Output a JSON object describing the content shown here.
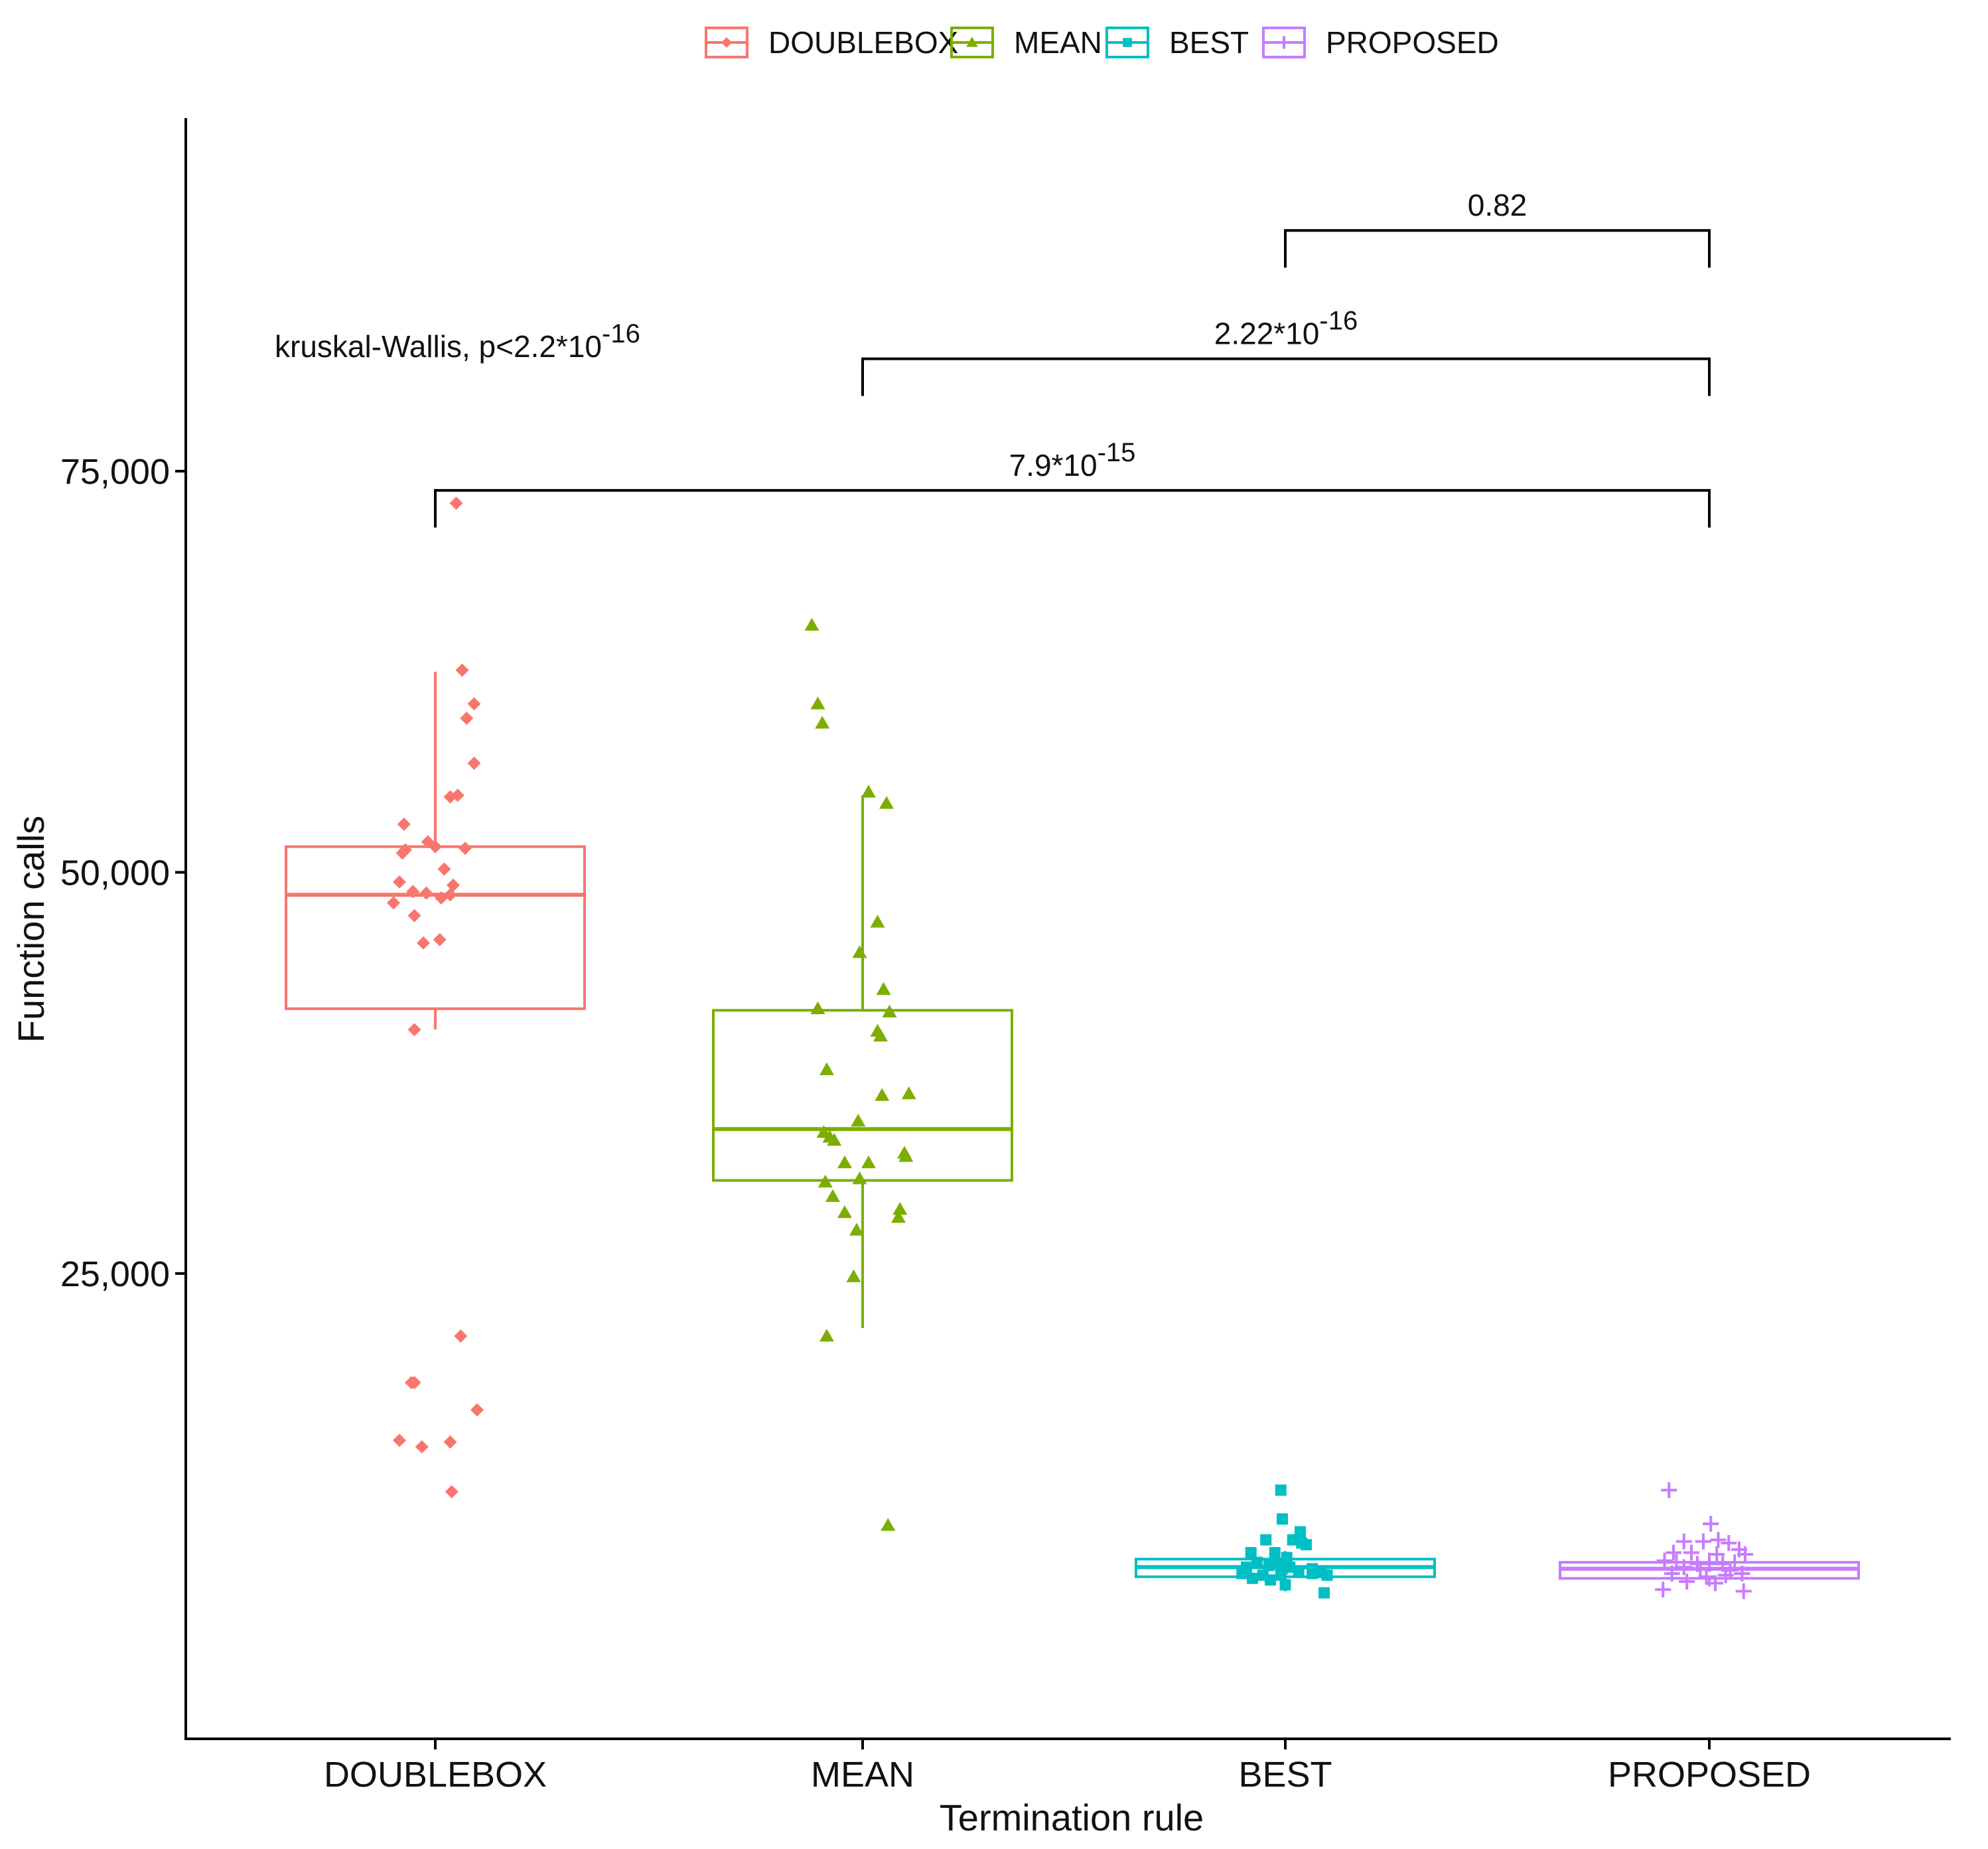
{
  "chart_data": {
    "type": "boxplot",
    "xlabel": "Termination rule",
    "ylabel": "Function calls",
    "ylim": [
      -4000,
      97000
    ],
    "yticks": [
      25000,
      50000,
      75000
    ],
    "ytick_labels": [
      "25,000",
      "50,000",
      "75,000"
    ],
    "categories": [
      "DOUBLEBOX",
      "MEAN",
      "BEST",
      "PROPOSED"
    ],
    "legend": {
      "position": "top",
      "entries": [
        {
          "label": "DOUBLEBOX",
          "color": "#F8766D",
          "shape": "diamond"
        },
        {
          "label": "MEAN",
          "color": "#7CAE00",
          "shape": "triangle"
        },
        {
          "label": "BEST",
          "color": "#00BFC4",
          "shape": "square"
        },
        {
          "label": "PROPOSED",
          "color": "#C77CFF",
          "shape": "plus"
        }
      ]
    },
    "boxes": [
      {
        "category": "DOUBLEBOX",
        "color": "#F8766D",
        "shape": "diamond",
        "whisker_low": 40200,
        "q1": 41500,
        "median": 48600,
        "q3": 51600,
        "whisker_high": 62500,
        "points": [
          {
            "j": 0.14,
            "v": 73000
          },
          {
            "j": 0.18,
            "v": 62600
          },
          {
            "j": 0.26,
            "v": 60500
          },
          {
            "j": 0.21,
            "v": 59600
          },
          {
            "j": 0.26,
            "v": 56800
          },
          {
            "j": 0.1,
            "v": 54700
          },
          {
            "j": 0.15,
            "v": 54800
          },
          {
            "j": -0.21,
            "v": 53000
          },
          {
            "j": -0.05,
            "v": 51900
          },
          {
            "j": -0.2,
            "v": 51400
          },
          {
            "j": -0.22,
            "v": 51200
          },
          {
            "j": 0.0,
            "v": 51600
          },
          {
            "j": 0.2,
            "v": 51500
          },
          {
            "j": -0.24,
            "v": 49400
          },
          {
            "j": 0.06,
            "v": 50200
          },
          {
            "j": 0.12,
            "v": 49200
          },
          {
            "j": -0.15,
            "v": 48800
          },
          {
            "j": -0.06,
            "v": 48700
          },
          {
            "j": 0.04,
            "v": 48400
          },
          {
            "j": 0.1,
            "v": 48600
          },
          {
            "j": -0.28,
            "v": 48100
          },
          {
            "j": -0.14,
            "v": 47300
          },
          {
            "j": -0.08,
            "v": 45600
          },
          {
            "j": 0.03,
            "v": 45800
          },
          {
            "j": -0.14,
            "v": 40200
          },
          {
            "j": 0.17,
            "v": 21100
          },
          {
            "j": -0.14,
            "v": 18200
          },
          {
            "j": -0.16,
            "v": 18200
          },
          {
            "j": 0.28,
            "v": 16500
          },
          {
            "j": -0.24,
            "v": 14600
          },
          {
            "j": -0.09,
            "v": 14200
          },
          {
            "j": 0.1,
            "v": 14500
          },
          {
            "j": 0.11,
            "v": 11400
          }
        ]
      },
      {
        "category": "MEAN",
        "color": "#7CAE00",
        "shape": "triangle",
        "whisker_low": 21600,
        "q1": 30800,
        "median": 34000,
        "q3": 41400,
        "whisker_high": 54800,
        "points": [
          {
            "j": -0.34,
            "v": 65400
          },
          {
            "j": -0.3,
            "v": 60500
          },
          {
            "j": -0.27,
            "v": 59300
          },
          {
            "j": 0.04,
            "v": 55000
          },
          {
            "j": 0.16,
            "v": 54300
          },
          {
            "j": 0.1,
            "v": 46900
          },
          {
            "j": -0.02,
            "v": 45000
          },
          {
            "j": 0.14,
            "v": 42700
          },
          {
            "j": -0.3,
            "v": 41500
          },
          {
            "j": 0.18,
            "v": 41300
          },
          {
            "j": 0.1,
            "v": 40100
          },
          {
            "j": 0.12,
            "v": 39800
          },
          {
            "j": -0.24,
            "v": 37700
          },
          {
            "j": 0.13,
            "v": 36100
          },
          {
            "j": 0.31,
            "v": 36200
          },
          {
            "j": -0.03,
            "v": 34500
          },
          {
            "j": -0.26,
            "v": 33800
          },
          {
            "j": -0.22,
            "v": 33500
          },
          {
            "j": -0.19,
            "v": 33300
          },
          {
            "j": 0.28,
            "v": 32500
          },
          {
            "j": 0.29,
            "v": 32300
          },
          {
            "j": -0.12,
            "v": 31900
          },
          {
            "j": 0.04,
            "v": 31900
          },
          {
            "j": -0.25,
            "v": 30700
          },
          {
            "j": -0.02,
            "v": 30900
          },
          {
            "j": -0.2,
            "v": 29800
          },
          {
            "j": -0.12,
            "v": 28800
          },
          {
            "j": -0.04,
            "v": 27700
          },
          {
            "j": 0.24,
            "v": 28500
          },
          {
            "j": 0.25,
            "v": 29000
          },
          {
            "j": -0.06,
            "v": 24800
          },
          {
            "j": -0.24,
            "v": 21100
          },
          {
            "j": 0.17,
            "v": 9300
          }
        ]
      },
      {
        "category": "BEST",
        "color": "#00BFC4",
        "shape": "square",
        "whisker_low": 5200,
        "q1": 6100,
        "median": 6700,
        "q3": 7200,
        "whisker_high": 7700,
        "points": [
          {
            "j": -0.03,
            "v": 11500
          },
          {
            "j": -0.02,
            "v": 9700
          },
          {
            "j": 0.1,
            "v": 8900
          },
          {
            "j": -0.13,
            "v": 8400
          },
          {
            "j": 0.05,
            "v": 8400
          },
          {
            "j": 0.11,
            "v": 8200
          },
          {
            "j": 0.14,
            "v": 8100
          },
          {
            "j": -0.23,
            "v": 7600
          },
          {
            "j": -0.07,
            "v": 7600
          },
          {
            "j": 0.01,
            "v": 7300
          },
          {
            "j": -0.19,
            "v": 7000
          },
          {
            "j": -0.26,
            "v": 6700
          },
          {
            "j": -0.11,
            "v": 6800
          },
          {
            "j": -0.02,
            "v": 6600
          },
          {
            "j": 0.03,
            "v": 6700
          },
          {
            "j": 0.18,
            "v": 6600
          },
          {
            "j": -0.29,
            "v": 6300
          },
          {
            "j": -0.15,
            "v": 6200
          },
          {
            "j": -0.03,
            "v": 6200
          },
          {
            "j": 0.09,
            "v": 6400
          },
          {
            "j": 0.24,
            "v": 6400
          },
          {
            "j": 0.28,
            "v": 6200
          },
          {
            "j": -0.22,
            "v": 6000
          },
          {
            "j": -0.1,
            "v": 5900
          },
          {
            "j": 0.0,
            "v": 5600
          },
          {
            "j": 0.26,
            "v": 5100
          },
          {
            "j": 0.18,
            "v": 6300
          },
          {
            "j": -0.06,
            "v": 6900
          }
        ]
      },
      {
        "category": "PROPOSED",
        "color": "#C77CFF",
        "shape": "plus",
        "whisker_low": 5500,
        "q1": 6000,
        "median": 6600,
        "q3": 7000,
        "whisker_high": 7600,
        "points": [
          {
            "j": -0.27,
            "v": 11500
          },
          {
            "j": 0.01,
            "v": 9400
          },
          {
            "j": 0.06,
            "v": 8400
          },
          {
            "j": -0.17,
            "v": 8300
          },
          {
            "j": 0.13,
            "v": 8200
          },
          {
            "j": -0.04,
            "v": 8300
          },
          {
            "j": 0.2,
            "v": 7800
          },
          {
            "j": -0.24,
            "v": 7600
          },
          {
            "j": -0.12,
            "v": 7600
          },
          {
            "j": 0.05,
            "v": 7500
          },
          {
            "j": 0.24,
            "v": 7500
          },
          {
            "j": -0.3,
            "v": 7100
          },
          {
            "j": -0.22,
            "v": 7000
          },
          {
            "j": -0.08,
            "v": 6900
          },
          {
            "j": 0.0,
            "v": 6900
          },
          {
            "j": 0.09,
            "v": 6900
          },
          {
            "j": 0.17,
            "v": 7000
          },
          {
            "j": -0.17,
            "v": 6700
          },
          {
            "j": -0.06,
            "v": 6600
          },
          {
            "j": 0.14,
            "v": 6500
          },
          {
            "j": -0.25,
            "v": 6300
          },
          {
            "j": -0.02,
            "v": 6100
          },
          {
            "j": 0.11,
            "v": 6200
          },
          {
            "j": -0.15,
            "v": 5800
          },
          {
            "j": 0.04,
            "v": 5700
          },
          {
            "j": -0.31,
            "v": 5300
          },
          {
            "j": 0.23,
            "v": 5200
          },
          {
            "j": 0.22,
            "v": 6300
          }
        ]
      }
    ],
    "annotations": {
      "kruskal": {
        "prefix": "kruskal-Wallis, p<2.2*10",
        "exponent": "-16"
      },
      "comparisons": [
        {
          "from": "BEST",
          "to": "PROPOSED",
          "y": 90000,
          "label_base": "0.82",
          "label_exp": ""
        },
        {
          "from": "MEAN",
          "to": "PROPOSED",
          "y": 82000,
          "label_base": "2.22*10",
          "label_exp": "-16"
        },
        {
          "from": "DOUBLEBOX",
          "to": "PROPOSED",
          "y": 73800,
          "label_base": "7.9*10",
          "label_exp": "-15"
        }
      ]
    }
  }
}
